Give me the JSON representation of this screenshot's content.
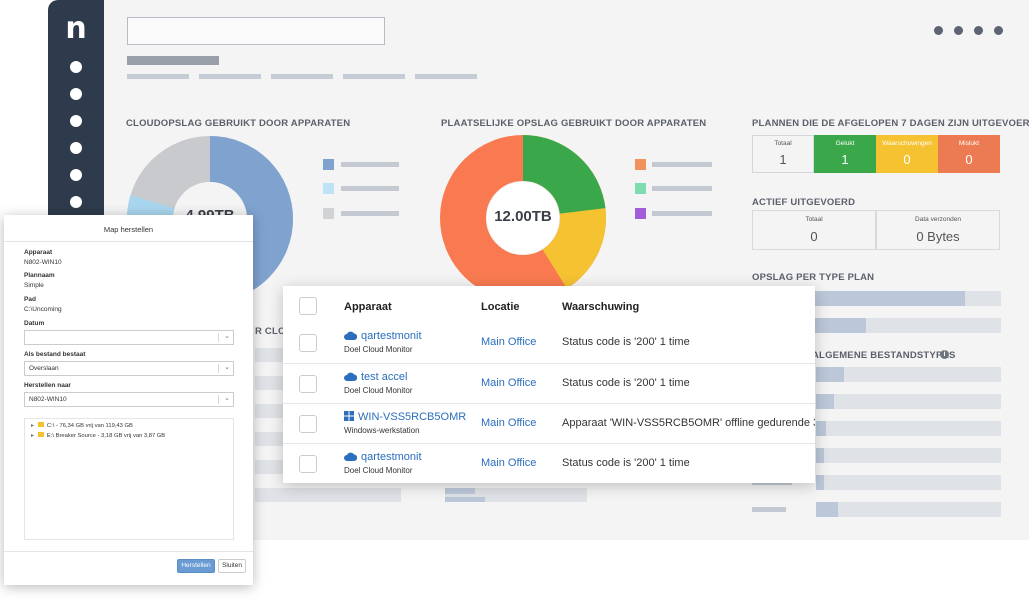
{
  "dashboard": {
    "sections": {
      "cloud_storage": "CLOUDOPSLAG GEBRUIKT DOOR APPARATEN",
      "local_storage": "PLAATSELIJKE OPSLAG GEBRUIKT DOOR APPARATEN",
      "plans_7days": "PLANNEN DIE DE AFGELOPEN 7 DAGEN ZIJN UITGEVOERD",
      "active": "ACTIEF UITGEVOERD",
      "storage_by_type": "OPSLAG PER TYPE PLAN",
      "file_types": "ALGEMENE BESTANDSTYPES",
      "cut_heading": "R CLO"
    },
    "cloud_total": "4.99TB",
    "local_total": "12.00TB",
    "plans": [
      {
        "label": "Totaal",
        "value": "1",
        "color": "#f4f4f5"
      },
      {
        "label": "Gelukt",
        "value": "1",
        "color": "#3aa84a"
      },
      {
        "label": "Waarschuwingen",
        "value": "0",
        "color": "#f5c232"
      },
      {
        "label": "Mislukt",
        "value": "0",
        "color": "#ec7a52"
      }
    ],
    "active": [
      {
        "label": "Totaal",
        "value": "0"
      },
      {
        "label": "Data verzonden",
        "value": "0 Bytes"
      }
    ],
    "colors": {
      "cloud_blue": "#7fa2cf",
      "cloud_light": "#a9d6ef",
      "cloud_gray": "#c8cacd",
      "local_orange": "#f97a50",
      "local_green": "#3aa84a",
      "local_yellow": "#f5c232",
      "local_purple": "#a25ed8"
    }
  },
  "alerts": {
    "headers": {
      "device": "Apparaat",
      "location": "Locatie",
      "warning": "Waarschuwing"
    },
    "rows": [
      {
        "name": "qartestmonit",
        "icon": "cloud-icon",
        "sub": "Doel Cloud Monitor",
        "location": "Main Office",
        "warning": "Status code is '200' 1 time"
      },
      {
        "name": "test accel",
        "icon": "cloud-icon",
        "sub": "Doel Cloud Monitor",
        "location": "Main Office",
        "warning": "Status code is '200' 1 time"
      },
      {
        "name": "WIN-VSS5RCB5OMR",
        "icon": "windows-icon",
        "sub": "Windows-werkstation",
        "location": "Main Office",
        "warning": "Apparaat 'WIN-VSS5RCB5OMR' offline gedurende 3"
      },
      {
        "name": "qartestmonit",
        "icon": "cloud-icon",
        "sub": "Doel Cloud Monitor",
        "location": "Main Office",
        "warning": "Status code is '200' 1 time"
      }
    ]
  },
  "dialog": {
    "title": "Map herstellen",
    "device_label": "Apparaat",
    "device_value": "N802-WIN10",
    "plan_label": "Plannaam",
    "plan_value": "Simple",
    "path_label": "Pad",
    "path_value": "C:\\Uncoming",
    "date_label": "Datum",
    "date_value": "",
    "exists_label": "Als bestand bestaat",
    "exists_value": "Overslaan",
    "restore_to_label": "Herstellen naar",
    "restore_to_value": "N802-WIN10",
    "tree": [
      "C:\\ - 76,34 GB vrij van 119,43 GB",
      "E:\\ Breaker Source - 3,18 GB vrij van 3,87 GB"
    ],
    "restore_button": "Herstellen",
    "close_button": "Sluiten"
  }
}
